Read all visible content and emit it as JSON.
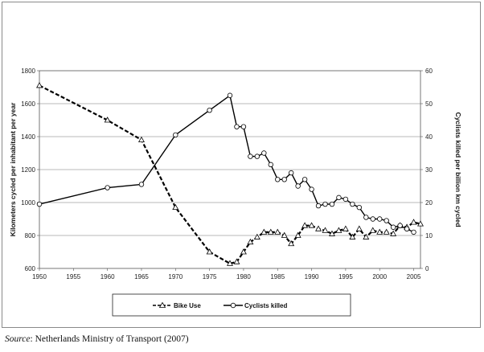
{
  "chart_data": {
    "type": "line",
    "title": "",
    "xlabel": "",
    "ylabel": "Kilometers cycled per inhabitant per year",
    "y2label": "Cyclists killed per billion km cycled",
    "xlim": [
      1950,
      2006
    ],
    "ylim": [
      600,
      1800
    ],
    "y2lim": [
      0,
      60
    ],
    "xticks": [
      1950,
      1955,
      1960,
      1965,
      1970,
      1975,
      1980,
      1985,
      1990,
      1995,
      2000,
      2005
    ],
    "yticks": [
      600,
      800,
      1000,
      1200,
      1400,
      1600,
      1800
    ],
    "y2ticks": [
      0,
      10,
      20,
      30,
      40,
      50,
      60
    ],
    "grid": "horizontal",
    "legend_position": "bottom",
    "series": [
      {
        "name": "Bike Use",
        "axis": "left",
        "style": "dashed",
        "marker": "triangle",
        "color": "#000000",
        "x": [
          1950,
          1960,
          1965,
          1970,
          1975,
          1978,
          1979,
          1980,
          1981,
          1982,
          1983,
          1984,
          1985,
          1986,
          1987,
          1988,
          1989,
          1990,
          1991,
          1992,
          1993,
          1994,
          1995,
          1996,
          1997,
          1998,
          1999,
          2000,
          2001,
          2002,
          2003,
          2004,
          2005,
          2006
        ],
        "values": [
          1710,
          1500,
          1380,
          970,
          700,
          630,
          640,
          700,
          760,
          790,
          820,
          820,
          820,
          800,
          750,
          800,
          860,
          860,
          840,
          830,
          810,
          830,
          840,
          790,
          840,
          790,
          830,
          820,
          820,
          810,
          860,
          850,
          880,
          870
        ]
      },
      {
        "name": "Cyclists killed",
        "axis": "right",
        "style": "solid",
        "marker": "circle",
        "color": "#000000",
        "x": [
          1950,
          1960,
          1965,
          1970,
          1975,
          1978,
          1979,
          1980,
          1981,
          1982,
          1983,
          1984,
          1985,
          1986,
          1987,
          1988,
          1989,
          1990,
          1991,
          1992,
          1993,
          1994,
          1995,
          1996,
          1997,
          1998,
          1999,
          2000,
          2001,
          2002,
          2003,
          2004,
          2005
        ],
        "values": [
          19.5,
          24.5,
          25.5,
          40.5,
          48,
          52.5,
          43,
          43,
          34,
          34,
          35,
          31.5,
          27,
          27,
          29,
          25,
          27,
          24,
          19,
          19.5,
          19.5,
          21.5,
          21,
          19.5,
          18.5,
          15.5,
          15,
          15,
          14.5,
          12.5,
          13,
          12,
          11
        ]
      }
    ]
  },
  "source": {
    "label": "Source",
    "text": ": Netherlands Ministry of Transport (2007)"
  }
}
